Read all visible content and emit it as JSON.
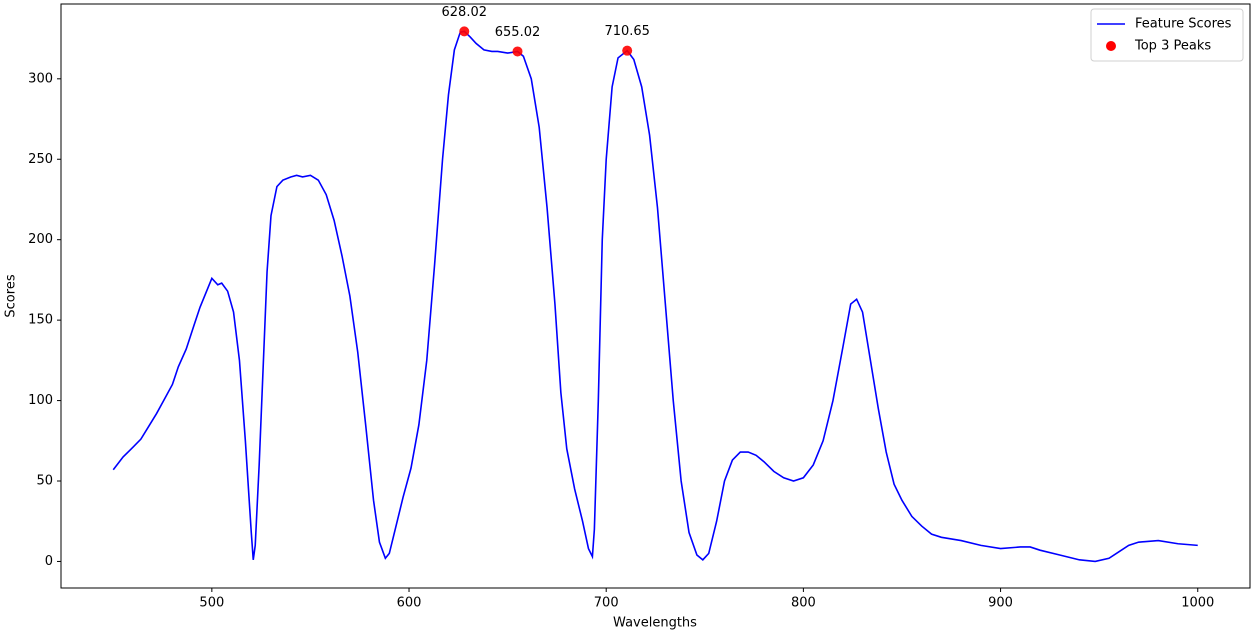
{
  "chart_data": {
    "type": "line",
    "xlabel": "Wavelengths",
    "ylabel": "Scores",
    "xlim": [
      423.5,
      1026.5
    ],
    "xticks": [
      500,
      600,
      700,
      800,
      900,
      1000
    ],
    "ylim": [
      -16.5,
      346.5
    ],
    "yticks": [
      0,
      50,
      100,
      150,
      200,
      250,
      300
    ],
    "grid": false,
    "legend": "upper right",
    "series": [
      {
        "name": "Feature Scores",
        "color": "#0000ff",
        "type": "line",
        "x": [
          450,
          455,
          460,
          464,
          468,
          472,
          476,
          480,
          483,
          487,
          491,
          494,
          497,
          500,
          503,
          505,
          508,
          511,
          514,
          517,
          520,
          521,
          522,
          524,
          526,
          528,
          530,
          533,
          536,
          540,
          543,
          546,
          550,
          554,
          558,
          562,
          566,
          570,
          574,
          578,
          582,
          585,
          588,
          590,
          593,
          597,
          601,
          605,
          609,
          613,
          617,
          620,
          623,
          626,
          628.02,
          631,
          634,
          638,
          642,
          645,
          650,
          655.02,
          658,
          662,
          666,
          670,
          674,
          677,
          680,
          684,
          688,
          691,
          693,
          694,
          696,
          698,
          700,
          703,
          706,
          710.65,
          714,
          718,
          722,
          726,
          730,
          734,
          738,
          742,
          746,
          749,
          752,
          756,
          760,
          764,
          768,
          772,
          776,
          780,
          785,
          790,
          795,
          800,
          805,
          810,
          815,
          820,
          824,
          827,
          830,
          834,
          838,
          842,
          846,
          850,
          855,
          860,
          865,
          870,
          880,
          890,
          900,
          910,
          915,
          920,
          930,
          940,
          948,
          955,
          960,
          965,
          970,
          980,
          990,
          1000
        ],
        "values": [
          57,
          65,
          71,
          76,
          84,
          92,
          101,
          110,
          121,
          132,
          147,
          158,
          167,
          176,
          172,
          173,
          168,
          155,
          125,
          75,
          18,
          1,
          10,
          60,
          120,
          180,
          215,
          233,
          237,
          239,
          240,
          239,
          240,
          237,
          228,
          212,
          190,
          165,
          130,
          85,
          38,
          12,
          2,
          5,
          20,
          40,
          58,
          85,
          125,
          185,
          250,
          290,
          318,
          329,
          329.5,
          326,
          322,
          318,
          317,
          317,
          316,
          317,
          314,
          300,
          270,
          220,
          160,
          105,
          70,
          45,
          25,
          8,
          3,
          20,
          100,
          200,
          250,
          295,
          313,
          317.5,
          312,
          295,
          265,
          220,
          160,
          100,
          50,
          18,
          4,
          1,
          5,
          25,
          50,
          63,
          68,
          68,
          66,
          62,
          56,
          52,
          50,
          52,
          60,
          75,
          100,
          133,
          160,
          163,
          155,
          125,
          95,
          68,
          48,
          38,
          28,
          22,
          17,
          15,
          13,
          10,
          8,
          9,
          9,
          7,
          4,
          1,
          0,
          2,
          6,
          10,
          12,
          13,
          11,
          10
        ]
      },
      {
        "name": "Top 3 Peaks",
        "color": "#ff0000",
        "type": "scatter",
        "x": [
          628.02,
          655.02,
          710.65
        ],
        "values": [
          329.5,
          317,
          317.5
        ]
      }
    ]
  }
}
